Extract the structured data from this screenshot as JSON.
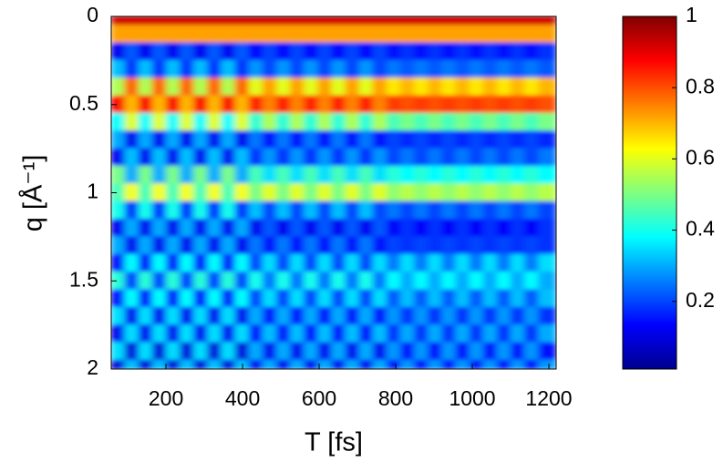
{
  "chart_data": {
    "type": "heatmap",
    "xlabel": "T [fs]",
    "ylabel": "q [Å⁻¹]",
    "x": [
      75,
      111,
      147,
      183,
      219,
      255,
      291,
      327,
      363,
      399,
      435,
      471,
      507,
      543,
      579,
      615,
      651,
      687,
      723,
      759,
      795,
      831,
      867,
      903,
      939,
      975,
      1011,
      1047,
      1083,
      1119,
      1155,
      1191
    ],
    "y": [
      0,
      0.1,
      0.2,
      0.3,
      0.4,
      0.5,
      0.6,
      0.7,
      0.8,
      0.9,
      1,
      1.1,
      1.2,
      1.3,
      1.4,
      1.5,
      1.6,
      1.7,
      1.8,
      1.9,
      2
    ],
    "xlim": [
      57,
      1219
    ],
    "ylim": [
      0,
      2
    ],
    "y_reversed": true,
    "xticks": [
      200,
      400,
      600,
      800,
      1000,
      1200
    ],
    "yticks": [
      0,
      0.5,
      1,
      1.5,
      2
    ],
    "colormap": "jet",
    "clim": [
      0.01,
      1
    ],
    "colorbar_ticks": [
      0.2,
      0.4,
      0.6,
      0.8,
      1
    ],
    "z": [
      [
        0.92,
        0.92,
        0.92,
        0.92,
        0.92,
        0.92,
        0.92,
        0.92,
        0.92,
        0.92,
        0.92,
        0.92,
        0.92,
        0.92,
        0.92,
        0.92,
        0.92,
        0.92,
        0.92,
        0.92,
        0.92,
        0.92,
        0.92,
        0.92,
        0.92,
        0.92,
        0.92,
        0.92,
        0.92,
        0.92,
        0.92,
        0.92
      ],
      [
        0.72,
        0.72,
        0.72,
        0.72,
        0.72,
        0.72,
        0.72,
        0.72,
        0.72,
        0.72,
        0.72,
        0.72,
        0.72,
        0.72,
        0.72,
        0.72,
        0.72,
        0.72,
        0.72,
        0.72,
        0.72,
        0.72,
        0.72,
        0.72,
        0.72,
        0.72,
        0.72,
        0.72,
        0.72,
        0.72,
        0.72,
        0.72
      ],
      [
        0.12,
        0.22,
        0.12,
        0.22,
        0.12,
        0.22,
        0.12,
        0.22,
        0.12,
        0.22,
        0.14,
        0.2,
        0.14,
        0.2,
        0.14,
        0.2,
        0.14,
        0.2,
        0.14,
        0.2,
        0.15,
        0.18,
        0.15,
        0.18,
        0.15,
        0.18,
        0.15,
        0.18,
        0.15,
        0.18,
        0.15,
        0.18
      ],
      [
        0.32,
        0.18,
        0.32,
        0.18,
        0.32,
        0.18,
        0.32,
        0.18,
        0.32,
        0.18,
        0.28,
        0.2,
        0.28,
        0.2,
        0.28,
        0.2,
        0.28,
        0.2,
        0.28,
        0.2,
        0.25,
        0.22,
        0.25,
        0.22,
        0.25,
        0.22,
        0.25,
        0.22,
        0.25,
        0.22,
        0.25,
        0.22
      ],
      [
        0.55,
        0.78,
        0.55,
        0.78,
        0.55,
        0.78,
        0.55,
        0.78,
        0.55,
        0.78,
        0.6,
        0.72,
        0.6,
        0.72,
        0.6,
        0.72,
        0.6,
        0.72,
        0.6,
        0.72,
        0.65,
        0.7,
        0.65,
        0.7,
        0.65,
        0.7,
        0.65,
        0.7,
        0.65,
        0.7,
        0.65,
        0.7
      ],
      [
        0.88,
        0.7,
        0.88,
        0.7,
        0.88,
        0.7,
        0.88,
        0.7,
        0.88,
        0.7,
        0.85,
        0.75,
        0.85,
        0.75,
        0.85,
        0.75,
        0.85,
        0.75,
        0.85,
        0.75,
        0.82,
        0.8,
        0.82,
        0.8,
        0.82,
        0.8,
        0.82,
        0.8,
        0.82,
        0.8,
        0.82,
        0.8
      ],
      [
        0.38,
        0.6,
        0.38,
        0.6,
        0.38,
        0.6,
        0.38,
        0.6,
        0.38,
        0.6,
        0.42,
        0.55,
        0.42,
        0.55,
        0.42,
        0.55,
        0.42,
        0.55,
        0.42,
        0.55,
        0.45,
        0.5,
        0.45,
        0.5,
        0.45,
        0.5,
        0.45,
        0.5,
        0.45,
        0.5,
        0.45,
        0.5
      ],
      [
        0.3,
        0.12,
        0.3,
        0.12,
        0.3,
        0.12,
        0.3,
        0.12,
        0.3,
        0.12,
        0.25,
        0.15,
        0.25,
        0.15,
        0.25,
        0.15,
        0.25,
        0.15,
        0.25,
        0.15,
        0.2,
        0.17,
        0.2,
        0.17,
        0.2,
        0.17,
        0.2,
        0.17,
        0.2,
        0.17,
        0.2,
        0.17
      ],
      [
        0.12,
        0.32,
        0.12,
        0.32,
        0.12,
        0.32,
        0.12,
        0.32,
        0.12,
        0.32,
        0.18,
        0.28,
        0.18,
        0.28,
        0.18,
        0.28,
        0.18,
        0.28,
        0.18,
        0.28,
        0.2,
        0.25,
        0.2,
        0.25,
        0.2,
        0.25,
        0.2,
        0.25,
        0.2,
        0.25,
        0.2,
        0.25
      ],
      [
        0.5,
        0.3,
        0.5,
        0.3,
        0.5,
        0.3,
        0.5,
        0.3,
        0.5,
        0.3,
        0.45,
        0.35,
        0.45,
        0.35,
        0.45,
        0.35,
        0.45,
        0.35,
        0.45,
        0.35,
        0.42,
        0.38,
        0.42,
        0.38,
        0.42,
        0.38,
        0.42,
        0.38,
        0.42,
        0.38,
        0.42,
        0.38
      ],
      [
        0.45,
        0.62,
        0.45,
        0.62,
        0.45,
        0.62,
        0.45,
        0.62,
        0.45,
        0.62,
        0.5,
        0.6,
        0.5,
        0.6,
        0.5,
        0.6,
        0.5,
        0.6,
        0.5,
        0.6,
        0.52,
        0.56,
        0.52,
        0.56,
        0.52,
        0.56,
        0.52,
        0.56,
        0.52,
        0.56,
        0.52,
        0.56
      ],
      [
        0.4,
        0.18,
        0.4,
        0.18,
        0.4,
        0.18,
        0.4,
        0.18,
        0.4,
        0.18,
        0.32,
        0.2,
        0.32,
        0.2,
        0.32,
        0.2,
        0.32,
        0.2,
        0.32,
        0.2,
        0.25,
        0.2,
        0.25,
        0.2,
        0.25,
        0.2,
        0.25,
        0.2,
        0.25,
        0.2,
        0.25,
        0.2
      ],
      [
        0.12,
        0.3,
        0.12,
        0.3,
        0.12,
        0.3,
        0.12,
        0.3,
        0.12,
        0.3,
        0.12,
        0.22,
        0.12,
        0.22,
        0.12,
        0.22,
        0.12,
        0.22,
        0.12,
        0.22,
        0.13,
        0.18,
        0.13,
        0.18,
        0.13,
        0.18,
        0.13,
        0.18,
        0.13,
        0.18,
        0.13,
        0.18
      ],
      [
        0.3,
        0.12,
        0.3,
        0.12,
        0.3,
        0.12,
        0.3,
        0.12,
        0.3,
        0.12,
        0.25,
        0.15,
        0.25,
        0.15,
        0.25,
        0.15,
        0.25,
        0.15,
        0.25,
        0.15,
        0.2,
        0.18,
        0.2,
        0.18,
        0.2,
        0.18,
        0.2,
        0.18,
        0.2,
        0.18,
        0.2,
        0.18
      ],
      [
        0.15,
        0.38,
        0.15,
        0.38,
        0.15,
        0.38,
        0.15,
        0.38,
        0.15,
        0.38,
        0.2,
        0.35,
        0.2,
        0.35,
        0.2,
        0.35,
        0.2,
        0.35,
        0.2,
        0.35,
        0.25,
        0.35,
        0.25,
        0.35,
        0.25,
        0.35,
        0.25,
        0.35,
        0.25,
        0.35,
        0.25,
        0.35
      ],
      [
        0.42,
        0.2,
        0.42,
        0.2,
        0.42,
        0.2,
        0.42,
        0.2,
        0.42,
        0.2,
        0.4,
        0.25,
        0.4,
        0.25,
        0.4,
        0.25,
        0.4,
        0.25,
        0.4,
        0.25,
        0.38,
        0.3,
        0.38,
        0.3,
        0.38,
        0.3,
        0.38,
        0.3,
        0.38,
        0.3,
        0.38,
        0.3
      ],
      [
        0.15,
        0.38,
        0.15,
        0.38,
        0.15,
        0.38,
        0.15,
        0.38,
        0.15,
        0.38,
        0.2,
        0.35,
        0.2,
        0.35,
        0.2,
        0.35,
        0.2,
        0.35,
        0.2,
        0.35,
        0.22,
        0.32,
        0.22,
        0.32,
        0.22,
        0.32,
        0.22,
        0.32,
        0.22,
        0.32,
        0.22,
        0.32
      ],
      [
        0.35,
        0.12,
        0.35,
        0.12,
        0.35,
        0.12,
        0.35,
        0.12,
        0.35,
        0.12,
        0.3,
        0.15,
        0.3,
        0.15,
        0.3,
        0.15,
        0.3,
        0.15,
        0.3,
        0.15,
        0.28,
        0.18,
        0.28,
        0.18,
        0.28,
        0.18,
        0.28,
        0.18,
        0.28,
        0.18,
        0.28,
        0.18
      ],
      [
        0.12,
        0.35,
        0.12,
        0.35,
        0.12,
        0.35,
        0.12,
        0.35,
        0.12,
        0.35,
        0.15,
        0.32,
        0.15,
        0.32,
        0.15,
        0.32,
        0.15,
        0.32,
        0.15,
        0.32,
        0.18,
        0.3,
        0.18,
        0.3,
        0.18,
        0.3,
        0.18,
        0.3,
        0.18,
        0.3,
        0.18,
        0.3
      ],
      [
        0.35,
        0.1,
        0.35,
        0.1,
        0.35,
        0.1,
        0.35,
        0.1,
        0.35,
        0.1,
        0.3,
        0.12,
        0.3,
        0.12,
        0.3,
        0.12,
        0.3,
        0.12,
        0.3,
        0.12,
        0.28,
        0.15,
        0.28,
        0.15,
        0.28,
        0.15,
        0.28,
        0.15,
        0.28,
        0.15,
        0.28,
        0.15
      ],
      [
        0.1,
        0.32,
        0.1,
        0.32,
        0.1,
        0.32,
        0.1,
        0.32,
        0.1,
        0.32,
        0.12,
        0.3,
        0.12,
        0.3,
        0.12,
        0.3,
        0.12,
        0.3,
        0.12,
        0.3,
        0.15,
        0.28,
        0.15,
        0.28,
        0.15,
        0.28,
        0.15,
        0.28,
        0.15,
        0.28,
        0.15,
        0.28
      ]
    ]
  }
}
